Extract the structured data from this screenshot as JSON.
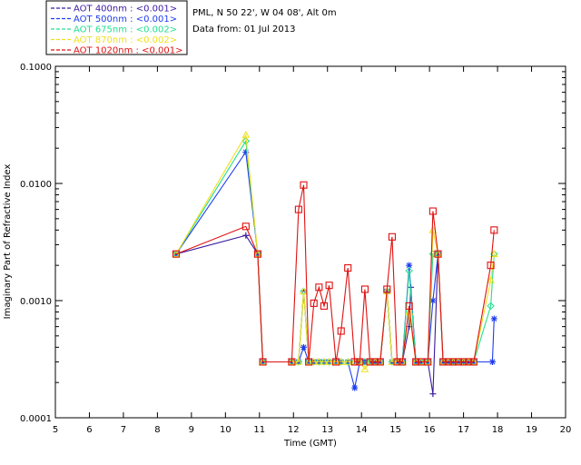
{
  "header": {
    "site_line": "PML, N 50 22', W 04 08', Alt 0m",
    "date_line": "Data from: 01 Jul 2013"
  },
  "legend": {
    "entries": [
      {
        "label": "AOT  400nm : <0.001>",
        "color": "#3a1aa0"
      },
      {
        "label": "AOT  500nm : <0.001>",
        "color": "#1e3cf0"
      },
      {
        "label": "AOT  675nm : <0.002>",
        "color": "#22e090"
      },
      {
        "label": "AOT  870nm : <0.002>",
        "color": "#f0e020"
      },
      {
        "label": "AOT 1020nm : <0.001>",
        "color": "#e01010"
      }
    ]
  },
  "chart_data": {
    "type": "line",
    "title": "",
    "xlabel": "Time (GMT)",
    "ylabel": "Imaginary Part of Refractive Index",
    "xlim": [
      5,
      20
    ],
    "ylim": [
      0.0001,
      0.1
    ],
    "yscale": "log",
    "x_ticks": [
      "5",
      "6",
      "7",
      "8",
      "9",
      "10",
      "11",
      "12",
      "13",
      "14",
      "15",
      "16",
      "17",
      "18",
      "19",
      "20"
    ],
    "y_ticks": [
      "0.0001",
      "0.0010",
      "0.0100",
      "0.1000"
    ],
    "grid": false,
    "legend_position": "top-left-outside",
    "series": [
      {
        "name": "AOT  400nm : <0.001>",
        "color": "#3a1aa0",
        "marker": "plus",
        "x": [
          8.55,
          10.6,
          10.95,
          11.1,
          11.95,
          12.15,
          12.3,
          12.45,
          12.6,
          12.75,
          12.9,
          13.05,
          13.25,
          13.4,
          13.6,
          13.8,
          13.95,
          14.1,
          14.25,
          14.4,
          14.55,
          14.75,
          14.9,
          15.05,
          15.2,
          15.4,
          15.45,
          15.6,
          15.75,
          15.95,
          16.1,
          16.25,
          16.4,
          16.55,
          16.7,
          16.85,
          17.0,
          17.15,
          17.3,
          17.85
        ],
        "y": [
          0.0025,
          0.0036,
          0.0025,
          0.0003,
          0.0003,
          0.0003,
          0.0012,
          0.0003,
          0.0003,
          0.0003,
          0.0003,
          0.0003,
          0.0003,
          0.0003,
          0.0003,
          0.0003,
          0.0003,
          0.0003,
          0.0003,
          0.0003,
          0.0003,
          0.0012,
          0.0003,
          0.0003,
          0.0003,
          0.0006,
          0.0013,
          0.0003,
          0.0003,
          0.0003,
          0.00016,
          0.0025,
          0.0003,
          0.0003,
          0.0003,
          0.0003,
          0.0003,
          0.0003,
          0.0003,
          0.0003
        ]
      },
      {
        "name": "AOT  500nm : <0.001>",
        "color": "#1e3cf0",
        "marker": "star",
        "x": [
          8.55,
          10.6,
          10.95,
          11.1,
          11.95,
          12.15,
          12.3,
          12.45,
          12.6,
          12.75,
          12.9,
          13.05,
          13.25,
          13.4,
          13.6,
          13.8,
          13.95,
          14.1,
          14.25,
          14.4,
          14.55,
          14.75,
          14.9,
          15.05,
          15.2,
          15.4,
          15.6,
          15.75,
          15.95,
          16.1,
          16.25,
          16.4,
          16.55,
          16.7,
          16.85,
          17.0,
          17.15,
          17.3,
          17.85,
          17.9
        ],
        "y": [
          0.0025,
          0.0185,
          0.0025,
          0.0003,
          0.0003,
          0.0003,
          0.0004,
          0.0003,
          0.0003,
          0.0003,
          0.0003,
          0.0003,
          0.0003,
          0.0003,
          0.0003,
          0.00018,
          0.0003,
          0.0003,
          0.0003,
          0.0003,
          0.0003,
          0.0012,
          0.0003,
          0.0003,
          0.0003,
          0.002,
          0.0003,
          0.0003,
          0.0003,
          0.001,
          0.0025,
          0.0003,
          0.0003,
          0.0003,
          0.0003,
          0.0003,
          0.0003,
          0.0003,
          0.0003,
          0.0007
        ]
      },
      {
        "name": "AOT  675nm : <0.002>",
        "color": "#22e090",
        "marker": "diamond",
        "x": [
          8.55,
          10.6,
          10.95,
          11.1,
          11.95,
          12.15,
          12.3,
          12.45,
          12.6,
          12.75,
          12.9,
          13.05,
          13.25,
          13.4,
          13.6,
          13.8,
          13.95,
          14.1,
          14.25,
          14.4,
          14.55,
          14.75,
          14.9,
          15.05,
          15.2,
          15.4,
          15.6,
          15.75,
          15.95,
          16.1,
          16.25,
          16.4,
          16.55,
          16.7,
          16.85,
          17.0,
          17.15,
          17.3,
          17.8,
          17.9
        ],
        "y": [
          0.0025,
          0.023,
          0.0025,
          0.0003,
          0.0003,
          0.0003,
          0.0012,
          0.0003,
          0.0003,
          0.0003,
          0.0003,
          0.0003,
          0.0003,
          0.0003,
          0.0003,
          0.0003,
          0.0003,
          0.0003,
          0.0003,
          0.0003,
          0.0003,
          0.0012,
          0.0003,
          0.0003,
          0.0003,
          0.0018,
          0.0003,
          0.0003,
          0.0003,
          0.0025,
          0.0025,
          0.0003,
          0.0003,
          0.0003,
          0.0003,
          0.0003,
          0.0003,
          0.0003,
          0.0009,
          0.0025
        ]
      },
      {
        "name": "AOT  870nm : <0.002>",
        "color": "#f0e020",
        "marker": "triangle",
        "x": [
          8.55,
          10.6,
          10.95,
          11.1,
          11.95,
          12.15,
          12.3,
          12.45,
          12.6,
          12.75,
          12.9,
          13.05,
          13.25,
          13.4,
          13.6,
          13.8,
          13.95,
          14.1,
          14.25,
          14.4,
          14.55,
          14.75,
          14.9,
          15.05,
          15.2,
          15.4,
          15.6,
          15.75,
          15.95,
          16.1,
          16.25,
          16.4,
          16.55,
          16.7,
          16.85,
          17.0,
          17.15,
          17.3,
          17.8,
          17.9
        ],
        "y": [
          0.0025,
          0.026,
          0.0025,
          0.0003,
          0.0003,
          0.0003,
          0.0012,
          0.0003,
          0.0003,
          0.0003,
          0.0003,
          0.0003,
          0.0003,
          0.0003,
          0.0003,
          0.0003,
          0.0003,
          0.00026,
          0.0003,
          0.0003,
          0.0003,
          0.0012,
          0.0003,
          0.0003,
          0.0003,
          0.0008,
          0.0003,
          0.0003,
          0.0003,
          0.004,
          0.0025,
          0.0003,
          0.0003,
          0.0003,
          0.0003,
          0.0003,
          0.0003,
          0.0003,
          0.0015,
          0.0025
        ]
      },
      {
        "name": "AOT 1020nm : <0.001>",
        "color": "#e01010",
        "marker": "square",
        "x": [
          8.55,
          10.6,
          10.95,
          11.1,
          11.95,
          12.15,
          12.3,
          12.45,
          12.6,
          12.75,
          12.9,
          13.05,
          13.25,
          13.4,
          13.6,
          13.8,
          13.95,
          14.1,
          14.25,
          14.4,
          14.55,
          14.75,
          14.9,
          15.05,
          15.2,
          15.4,
          15.6,
          15.75,
          15.95,
          16.1,
          16.25,
          16.4,
          16.55,
          16.7,
          16.85,
          17.0,
          17.15,
          17.3,
          17.8,
          17.9
        ],
        "y": [
          0.0025,
          0.0043,
          0.0025,
          0.0003,
          0.0003,
          0.006,
          0.0097,
          0.0003,
          0.00095,
          0.0013,
          0.0009,
          0.00135,
          0.0003,
          0.00055,
          0.0019,
          0.0003,
          0.0003,
          0.00125,
          0.0003,
          0.0003,
          0.0003,
          0.00125,
          0.0035,
          0.0003,
          0.0003,
          0.0009,
          0.0003,
          0.0003,
          0.0003,
          0.0058,
          0.0025,
          0.0003,
          0.0003,
          0.0003,
          0.0003,
          0.0003,
          0.0003,
          0.0003,
          0.002,
          0.004
        ]
      }
    ]
  }
}
